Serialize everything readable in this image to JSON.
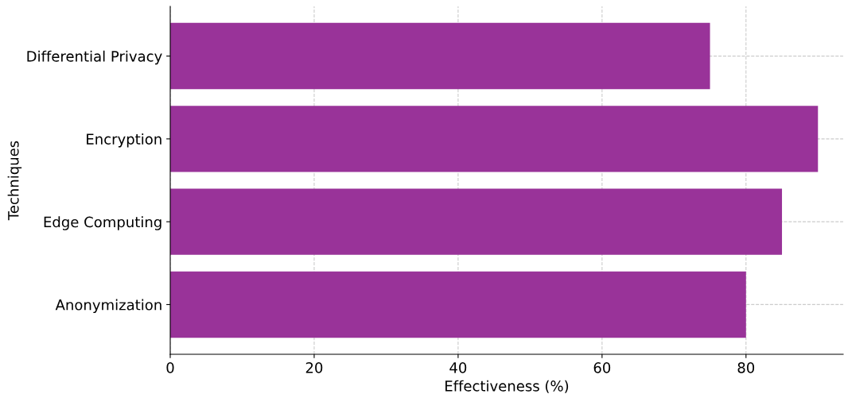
{
  "chart_data": {
    "type": "bar",
    "orientation": "horizontal",
    "xlabel": "Effectiveness (%)",
    "ylabel": "Techniques",
    "categories": [
      "Differential Privacy",
      "Encryption",
      "Edge Computing",
      "Anonymization"
    ],
    "values": [
      75,
      90,
      85,
      80
    ],
    "color": "#993399",
    "xlim": [
      0,
      93.5
    ],
    "xticks": [
      0,
      20,
      40,
      60,
      80
    ],
    "grid": true
  }
}
